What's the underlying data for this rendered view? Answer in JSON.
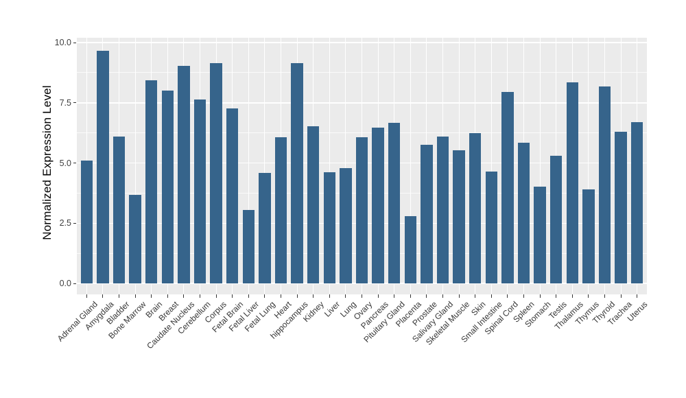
{
  "figure": {
    "background": "#ffffff"
  },
  "panel": {
    "background": "#EBEBEB",
    "grid_major_color": "#FFFFFF",
    "grid_minor_color": "rgba(255,255,255,0.75)",
    "tick_color": "#333333"
  },
  "axes": {
    "y_title": "Normalized Expression Level",
    "y_tick_labels": [
      "0.0",
      "2.5",
      "5.0",
      "7.5",
      "10.0"
    ],
    "y_tick_values": [
      0,
      2.5,
      5,
      7.5,
      10
    ],
    "y_minor_values": [
      1.25,
      3.75,
      6.25,
      8.75
    ]
  },
  "chart_data": {
    "type": "bar",
    "title": "",
    "xlabel": "",
    "ylabel": "Normalized Expression Level",
    "ylim": [
      0,
      10.2
    ],
    "grid": true,
    "legend": false,
    "bar_color": "#36648B",
    "categories": [
      "Adrenal Gland",
      "Amygdala",
      "Bladder",
      "Bone Marrow",
      "Brain",
      "Breast",
      "Caudate Nucleus",
      "Cerebellum",
      "Corpus",
      "Fetal Brain",
      "Fetal Liver",
      "Fetal Lung",
      "Heart",
      "hippocampus",
      "Kidney",
      "Liver",
      "Lung",
      "Ovary",
      "Pancreas",
      "Pituitary Gland",
      "Placenta",
      "Prostate",
      "Salivary Gland",
      "Skeletal Muscle",
      "Skin",
      "Small Intestine",
      "Spinal Cord",
      "Spleen",
      "Stomach",
      "Testis",
      "Thalamus",
      "Thymus",
      "Thyroid",
      "Trachea",
      "Uterus"
    ],
    "values": [
      5.1,
      9.65,
      6.1,
      3.67,
      8.43,
      8.0,
      9.02,
      7.64,
      9.14,
      7.27,
      3.06,
      4.6,
      6.06,
      9.14,
      6.53,
      4.62,
      4.8,
      6.08,
      6.46,
      6.68,
      2.8,
      5.76,
      6.11,
      5.52,
      6.24,
      4.64,
      7.95,
      5.85,
      4.02,
      5.31,
      8.36,
      3.9,
      8.17,
      6.3,
      6.7
    ]
  }
}
